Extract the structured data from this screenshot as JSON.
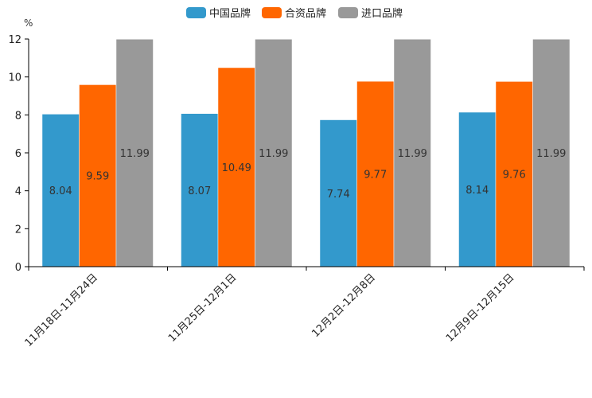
{
  "chart_data": {
    "type": "bar",
    "title": "",
    "xlabel": "",
    "ylabel": "%",
    "ylim": [
      0,
      12
    ],
    "yticks": [
      0,
      2,
      4,
      6,
      8,
      10,
      12
    ],
    "categories": [
      "11月18日-11月24日",
      "11月25日-12月1日",
      "12月2日-12月8日",
      "12月9日-12月15日"
    ],
    "series": [
      {
        "name": "中国品牌",
        "color": "#3399cc",
        "values": [
          8.04,
          8.07,
          7.74,
          8.14
        ]
      },
      {
        "name": "合资品牌",
        "color": "#ff6600",
        "values": [
          9.59,
          10.49,
          9.77,
          9.76
        ]
      },
      {
        "name": "进口品牌",
        "color": "#999999",
        "values": [
          11.99,
          11.99,
          11.99,
          11.99
        ]
      }
    ],
    "legend": "top-center",
    "grid": false
  }
}
